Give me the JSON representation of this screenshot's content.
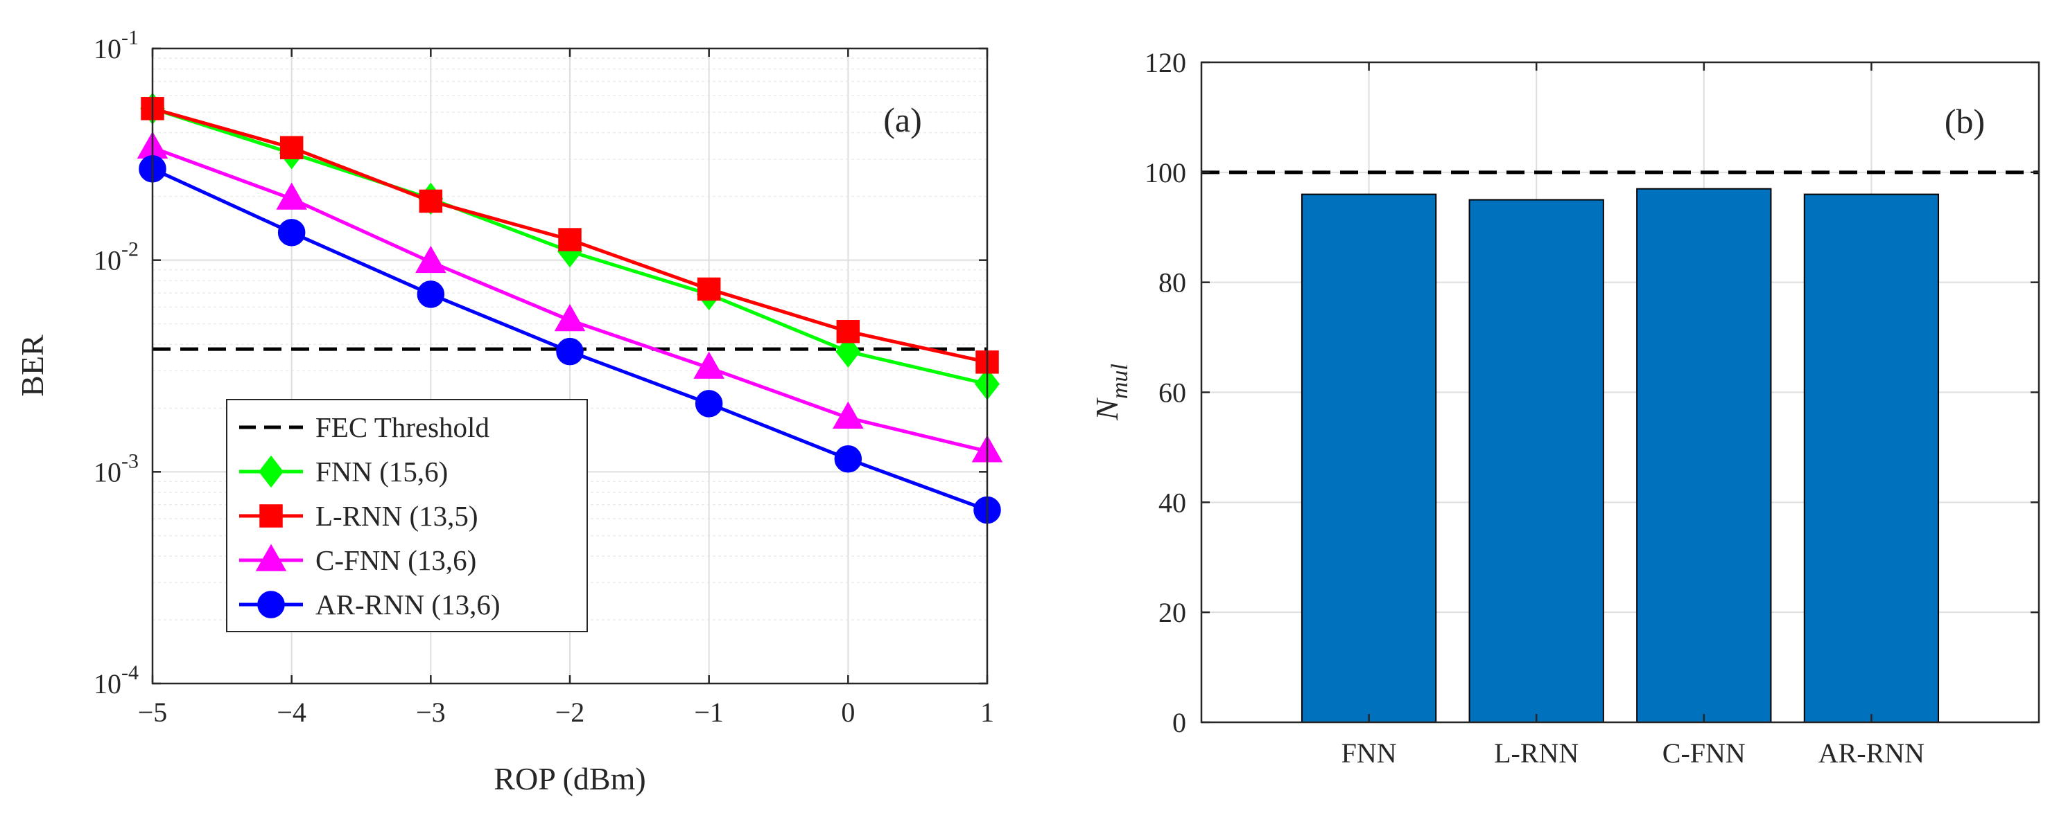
{
  "chart_data": [
    {
      "type": "line",
      "panel_label": "(a)",
      "xlabel": "ROP (dBm)",
      "ylabel": "BER",
      "yscale": "log",
      "xlim": [
        -5,
        1
      ],
      "ylim": [
        0.0001,
        0.1
      ],
      "x_ticks": [
        -5,
        -4,
        -3,
        -2,
        -1,
        0,
        1
      ],
      "x_tick_labels": [
        "−5",
        "−4",
        "−3",
        "−2",
        "−1",
        "0",
        "1"
      ],
      "y_ticks": [
        0.0001,
        0.001,
        0.01,
        0.1
      ],
      "y_tick_labels": [
        {
          "base": "10",
          "exp": "-4"
        },
        {
          "base": "10",
          "exp": "-3"
        },
        {
          "base": "10",
          "exp": "-2"
        },
        {
          "base": "10",
          "exp": "-1"
        }
      ],
      "grid": true,
      "legend_position": "bottom-left",
      "threshold": {
        "name": "FEC Threshold",
        "value": 0.0038,
        "color": "#000000",
        "style": "dashed"
      },
      "x": [
        -5,
        -4,
        -3,
        -2,
        -1,
        0,
        1
      ],
      "series": [
        {
          "name": "FNN (15,6)",
          "color": "#00ff00",
          "marker": "diamond",
          "values": [
            0.052,
            0.032,
            0.0195,
            0.011,
            0.0069,
            0.0037,
            0.0026
          ]
        },
        {
          "name": "L-RNN (13,5)",
          "color": "#ff0000",
          "marker": "square",
          "values": [
            0.052,
            0.034,
            0.019,
            0.0125,
            0.0073,
            0.0046,
            0.0033
          ]
        },
        {
          "name": "C-FNN (13,6)",
          "color": "#ff00ff",
          "marker": "triangle",
          "values": [
            0.034,
            0.0195,
            0.0098,
            0.0052,
            0.0031,
            0.0018,
            0.00125
          ]
        },
        {
          "name": "AR-RNN (13,6)",
          "color": "#0000ff",
          "marker": "circle",
          "values": [
            0.027,
            0.0135,
            0.0069,
            0.0037,
            0.0021,
            0.00115,
            0.00066
          ]
        }
      ]
    },
    {
      "type": "bar",
      "panel_label": "(b)",
      "xlabel": "",
      "ylabel": {
        "base": "N",
        "sub": "mul"
      },
      "categories": [
        "FNN",
        "L-RNN",
        "C-FNN",
        "AR-RNN"
      ],
      "values": [
        96,
        95,
        97,
        96
      ],
      "ylim": [
        0,
        120
      ],
      "y_ticks": [
        0,
        20,
        40,
        60,
        80,
        100,
        120
      ],
      "grid": true,
      "bar_color": "#0072bd",
      "threshold": {
        "value": 100,
        "color": "#000000",
        "style": "dashed"
      }
    }
  ]
}
